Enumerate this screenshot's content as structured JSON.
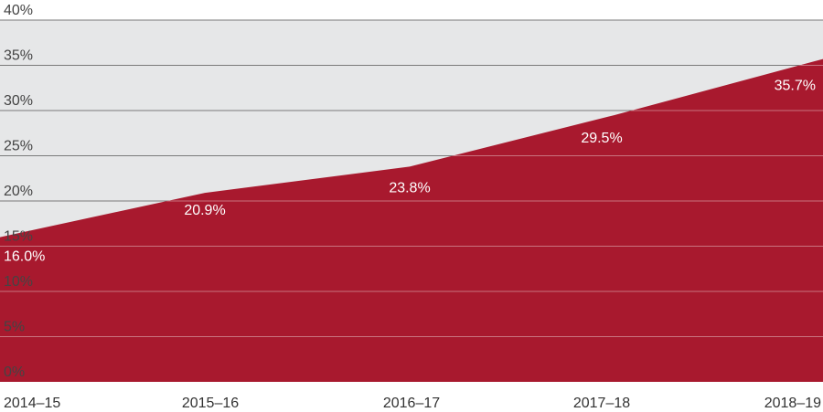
{
  "chart_data": {
    "type": "area",
    "categories": [
      "2014–15",
      "2015–16",
      "2016–17",
      "2017–18",
      "2018–19"
    ],
    "values": [
      16.0,
      20.9,
      23.8,
      29.5,
      35.7
    ],
    "data_labels": [
      "16.0%",
      "20.9%",
      "23.8%",
      "29.5%",
      "35.7%"
    ],
    "y_ticks": [
      0,
      5,
      10,
      15,
      20,
      25,
      30,
      35,
      40
    ],
    "y_tick_labels": [
      "0%",
      "5%",
      "10%",
      "15%",
      "20%",
      "25%",
      "30%",
      "35%",
      "40%"
    ],
    "ylim": [
      0,
      40
    ],
    "title": "",
    "xlabel": "",
    "ylabel": "",
    "grid": true,
    "legend": "none",
    "colors": {
      "area": "#a8192e",
      "background": "#e6e7e8",
      "gridline_on_background": "#7a7a7a",
      "gridline_on_area": "#c9737f"
    }
  }
}
